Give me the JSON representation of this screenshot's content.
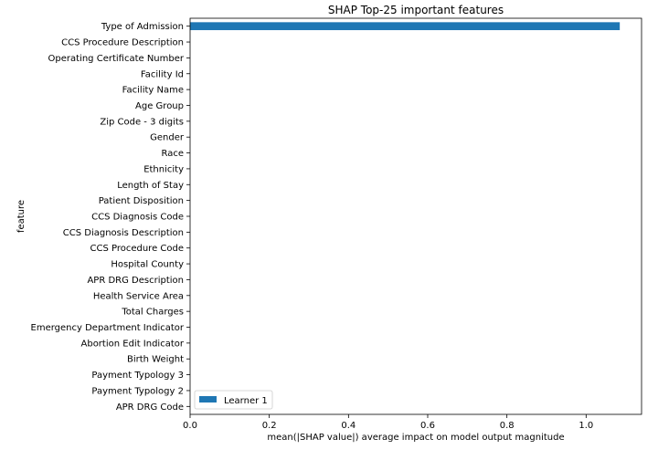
{
  "chart_data": {
    "type": "bar",
    "orientation": "horizontal",
    "title": "SHAP Top-25 important features",
    "xlabel": "mean(|SHAP value|) average impact on model output magnitude",
    "ylabel": "feature",
    "xlim": [
      0,
      1.14
    ],
    "xticks": [
      0.0,
      0.2,
      0.4,
      0.6,
      0.8,
      1.0
    ],
    "xtick_labels": [
      "0.0",
      "0.2",
      "0.4",
      "0.6",
      "0.8",
      "1.0"
    ],
    "grid": false,
    "legend_position": "lower-left",
    "categories": [
      "Type of Admission",
      "CCS Procedure Description",
      "Operating Certificate Number",
      "Facility Id",
      "Facility Name",
      "Age Group",
      "Zip Code - 3 digits",
      "Gender",
      "Race",
      "Ethnicity",
      "Length of Stay",
      "Patient Disposition",
      "CCS Diagnosis Code",
      "CCS Diagnosis Description",
      "CCS Procedure Code",
      "Hospital County",
      "APR DRG Description",
      "Health Service Area",
      "Total Charges",
      "Emergency Department Indicator",
      "Abortion Edit Indicator",
      "Birth Weight",
      "Payment Typology 3",
      "Payment Typology 2",
      "APR DRG Code"
    ],
    "series": [
      {
        "name": "Learner 1",
        "color": "#1f77b4",
        "values": [
          1.085,
          0,
          0,
          0,
          0,
          0,
          0,
          0,
          0,
          0,
          0,
          0,
          0,
          0,
          0,
          0,
          0,
          0,
          0,
          0,
          0,
          0,
          0,
          0,
          0
        ]
      }
    ]
  }
}
